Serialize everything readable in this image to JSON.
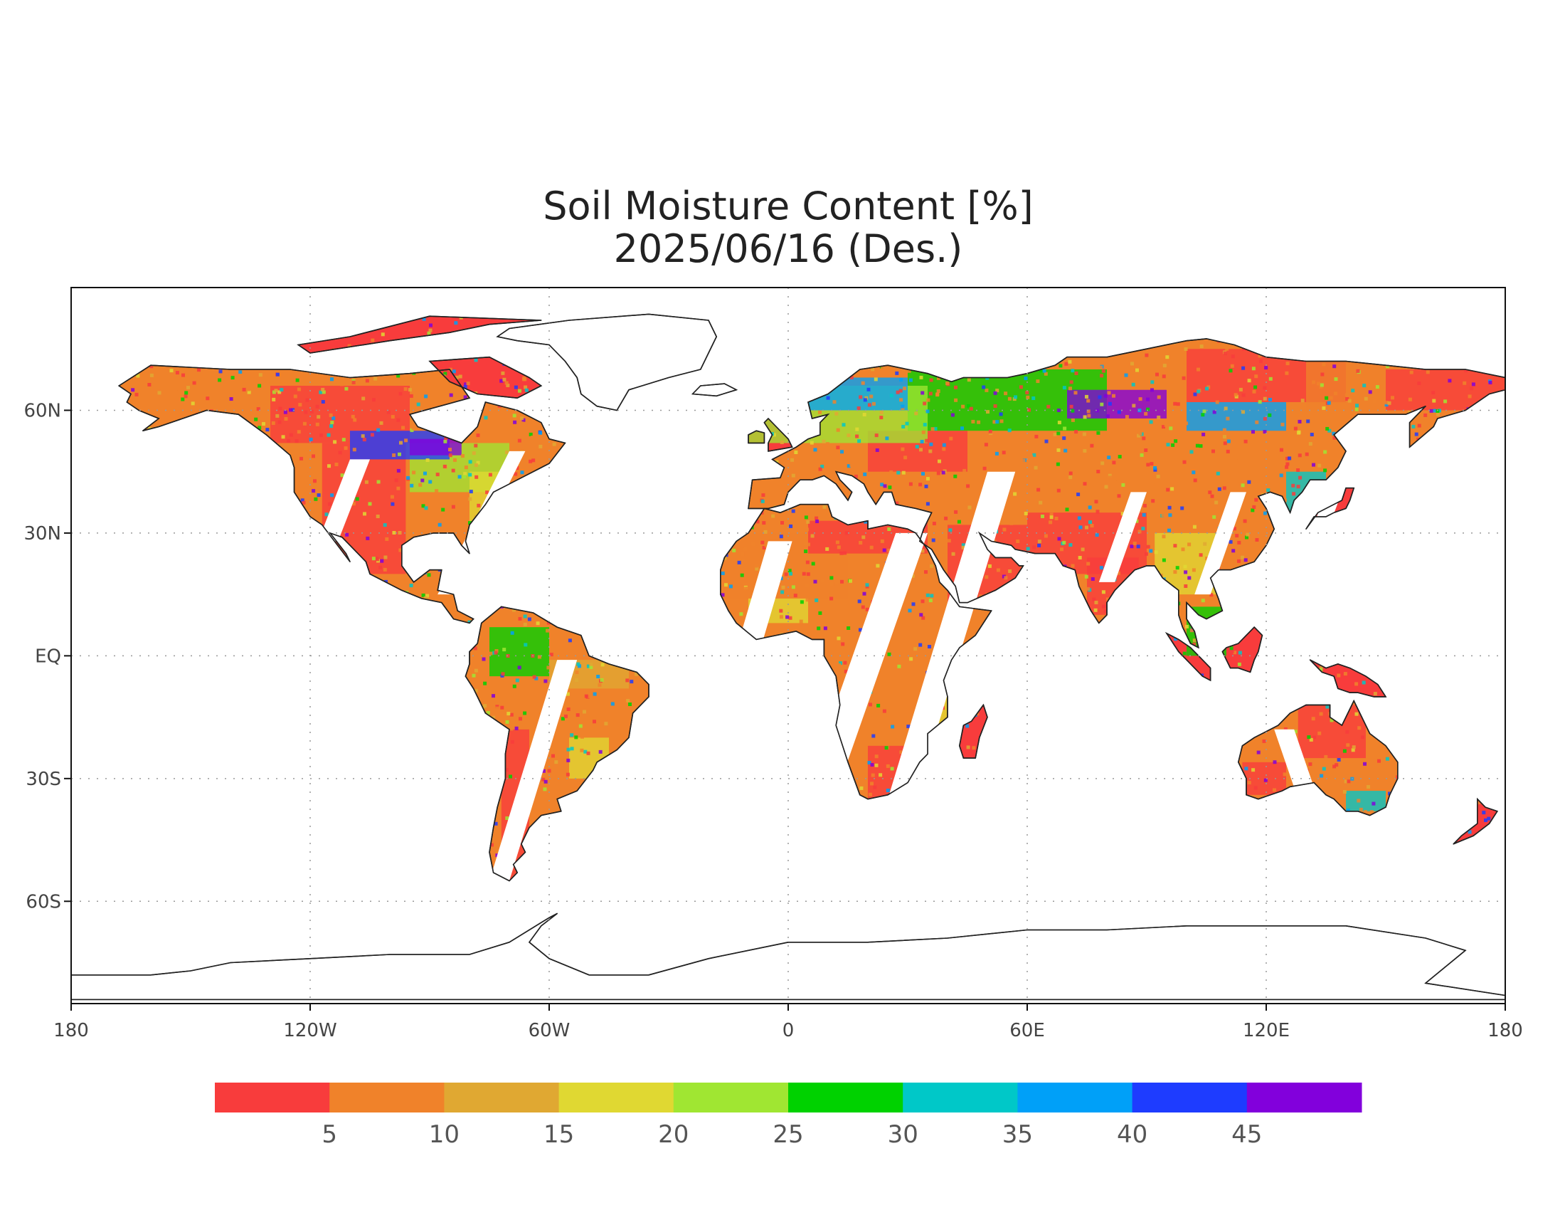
{
  "title": {
    "line1": "Soil Moisture Content [%]",
    "line2": "2025/06/16 (Des.)"
  },
  "map": {
    "projection": "equirectangular",
    "lon_range": [
      -180,
      180
    ],
    "lat_range": [
      -85,
      90
    ],
    "grid": "dotted",
    "lon_ticks": [
      {
        "value": -180,
        "label": "180"
      },
      {
        "value": -120,
        "label": "120W"
      },
      {
        "value": -60,
        "label": "60W"
      },
      {
        "value": 0,
        "label": "0"
      },
      {
        "value": 60,
        "label": "60E"
      },
      {
        "value": 120,
        "label": "120E"
      },
      {
        "value": 180,
        "label": "180"
      }
    ],
    "lat_ticks": [
      {
        "value": 60,
        "label": "60N"
      },
      {
        "value": 30,
        "label": "30N"
      },
      {
        "value": 0,
        "label": "EQ"
      },
      {
        "value": -30,
        "label": "30S"
      },
      {
        "value": -60,
        "label": "60S"
      }
    ]
  },
  "colorbar": {
    "colors": [
      "#f83c3c",
      "#f0822a",
      "#e0a832",
      "#e0d832",
      "#a0e632",
      "#00d200",
      "#00c8c8",
      "#00a0f8",
      "#1e3cff",
      "#8200dc"
    ],
    "labels": [
      "5",
      "10",
      "15",
      "20",
      "25",
      "30",
      "35",
      "40",
      "45"
    ]
  }
}
